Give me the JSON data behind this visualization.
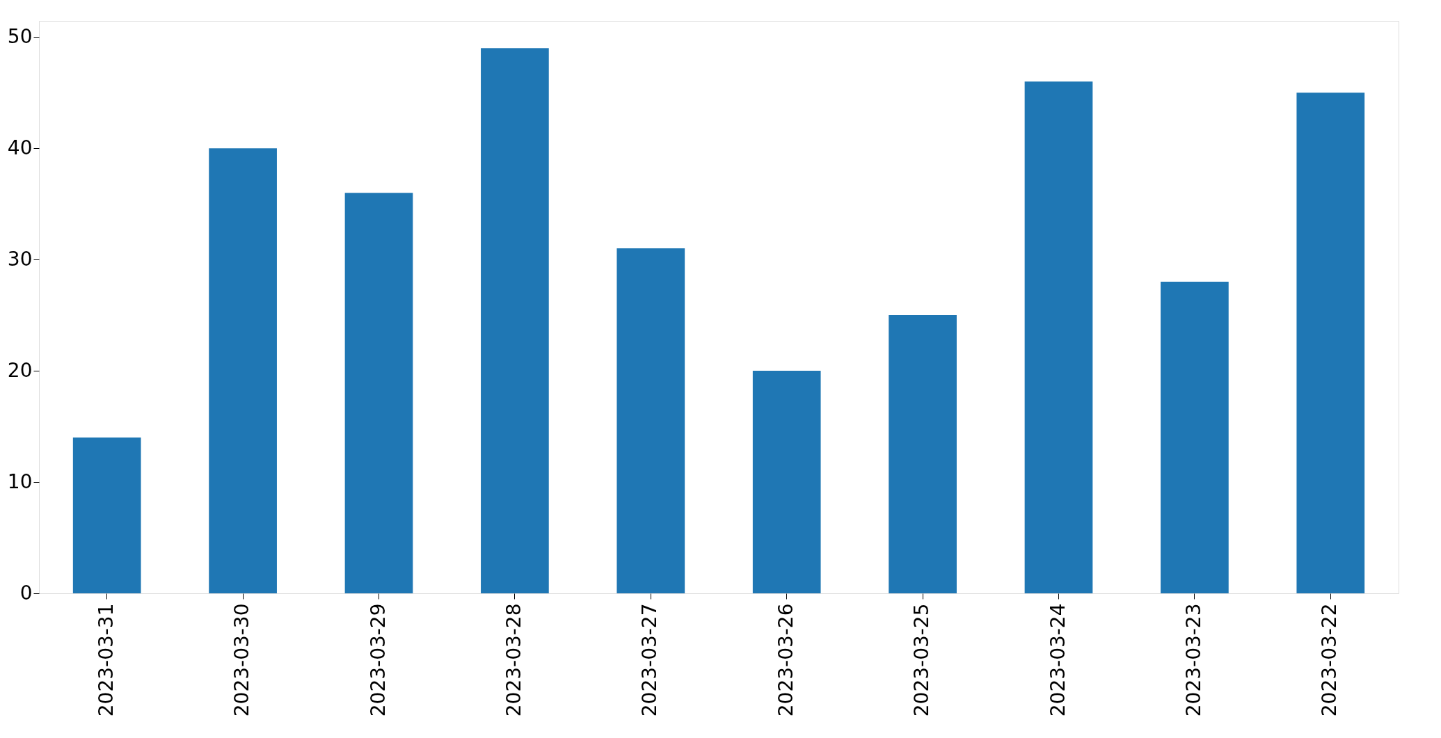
{
  "chart_data": {
    "type": "bar",
    "categories": [
      "2023-03-31",
      "2023-03-30",
      "2023-03-29",
      "2023-03-28",
      "2023-03-27",
      "2023-03-26",
      "2023-03-25",
      "2023-03-24",
      "2023-03-23",
      "2023-03-22"
    ],
    "values": [
      14,
      40,
      36,
      49,
      31,
      20,
      25,
      46,
      28,
      45
    ],
    "color": "#1f77b4",
    "ylim": [
      0,
      51.45
    ],
    "yticks": [
      0,
      10,
      20,
      30,
      40,
      50
    ],
    "grid": false
  }
}
